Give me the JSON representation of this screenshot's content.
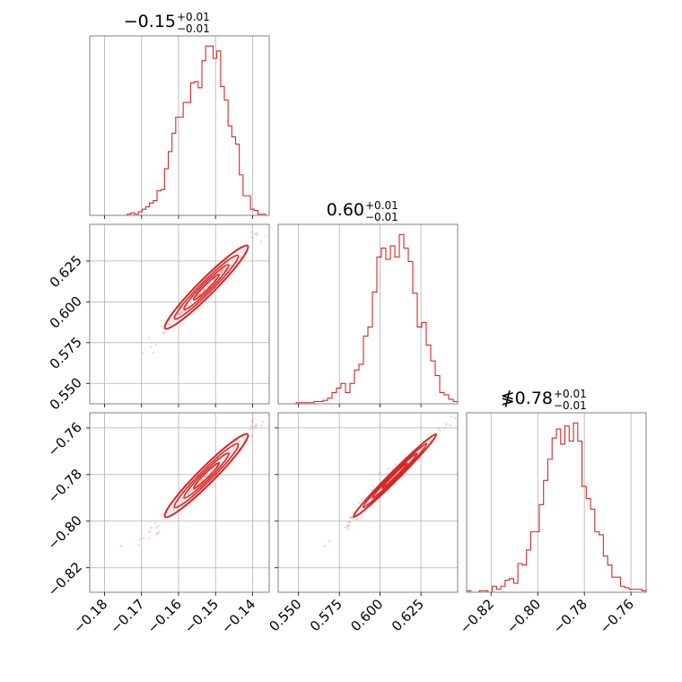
{
  "chart_data": {
    "type": "corner",
    "color": "#d62728",
    "parameters": [
      {
        "title_value": "−0.15",
        "title_plus": "+0.01",
        "title_minus": "−0.01",
        "range": [
          -0.184,
          -0.1355
        ],
        "ticks": [
          -0.18,
          -0.17,
          -0.16,
          -0.15,
          -0.14
        ],
        "tick_labels": [
          "−0.18",
          "−0.17",
          "−0.16",
          "−0.15",
          "−0.14"
        ],
        "hist_counts": [
          0,
          0,
          0,
          0,
          0,
          0,
          0,
          0,
          0,
          0,
          1,
          2,
          1,
          3,
          5,
          7,
          10,
          12,
          20,
          21,
          38,
          52,
          67,
          80,
          80,
          92,
          92,
          108,
          109,
          104,
          126,
          138,
          138,
          128,
          134,
          105,
          94,
          73,
          64,
          58,
          33,
          16,
          16,
          5,
          4,
          1,
          1,
          0
        ]
      },
      {
        "title_value": "0.60",
        "title_plus": "+0.01",
        "title_minus": "−0.01",
        "range": [
          0.5375,
          0.6475
        ],
        "ticks": [
          0.55,
          0.575,
          0.6,
          0.625
        ],
        "tick_labels": [
          "0.550",
          "0.575",
          "0.600",
          "0.625"
        ],
        "y_tick_labels": [
          "0.550",
          "0.575",
          "0.600",
          "0.625"
        ],
        "hist_counts": [
          0,
          0,
          0,
          0,
          1,
          1,
          1,
          1,
          2,
          2,
          3,
          5,
          10,
          14,
          18,
          10,
          18,
          30,
          35,
          60,
          68,
          99,
          130,
          138,
          128,
          140,
          130,
          150,
          138,
          126,
          98,
          68,
          72,
          52,
          38,
          25,
          10,
          8,
          4,
          2
        ]
      },
      {
        "title_value": "≸0.78",
        "title_plus": "+0.01",
        "title_minus": "−0.01",
        "range": [
          -0.8305,
          -0.7535
        ],
        "ticks": [
          -0.82,
          -0.8,
          -0.78,
          -0.76
        ],
        "tick_labels": [
          "−0.82",
          "−0.80",
          "−0.78",
          "−0.76"
        ],
        "hist_counts": [
          1,
          0,
          0,
          1,
          1,
          0,
          4,
          2,
          4,
          8,
          9,
          6,
          19,
          18,
          28,
          40,
          40,
          58,
          74,
          88,
          102,
          108,
          98,
          110,
          100,
          112,
          100,
          70,
          62,
          55,
          40,
          38,
          24,
          18,
          10,
          10,
          4,
          3,
          2,
          2,
          2,
          1
        ]
      }
    ],
    "y_axis_labels": {
      "row1": [
        "0.550",
        "0.575",
        "0.600",
        "0.625"
      ],
      "row2": [
        "−0.82",
        "−0.80",
        "−0.78",
        "−0.76"
      ]
    },
    "correlation": "strong positive between all parameter pairs",
    "grid": true
  }
}
